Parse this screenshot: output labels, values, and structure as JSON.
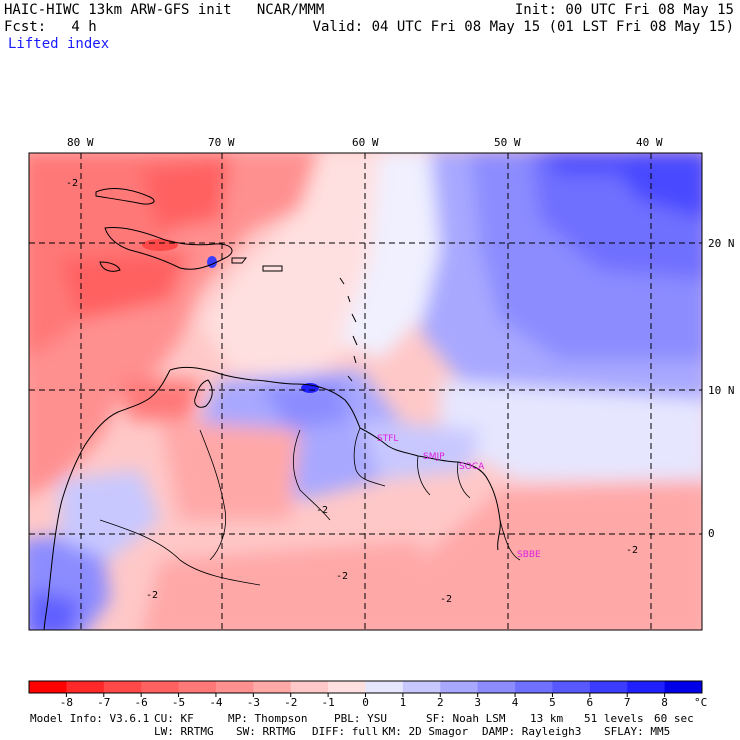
{
  "header": {
    "title_left": "HAIC-HIWC 13km ARW-GFS init   NCAR/MMM",
    "forecast": "Fcst:   4 h",
    "field": "Lifted index",
    "init": "Init: 00 UTC Fri 08 May 15",
    "valid": "Valid: 04 UTC Fri 08 May 15 (01 LST Fri 08 May 15)"
  },
  "map": {
    "lon_labels": [
      "80 W",
      "70 W",
      "60 W",
      "50 W",
      "40 W"
    ],
    "lat_labels": [
      "20 N",
      "10 N",
      "0"
    ],
    "contour_labels": [
      "-2",
      "-2",
      "-2",
      "-2",
      "-2",
      "-2"
    ],
    "stations": [
      "STFL",
      "SMJP",
      "SOCA",
      "SBBE"
    ],
    "station_color": "#e020e0"
  },
  "colorbar": {
    "ticks": [
      "-8",
      "-7",
      "-6",
      "-5",
      "-4",
      "-3",
      "-2",
      "-1",
      "0",
      "1",
      "2",
      "3",
      "4",
      "5",
      "6",
      "7",
      "8"
    ],
    "unit": "°C",
    "colors": [
      "#ff0000",
      "#ff2828",
      "#ff4848",
      "#ff6060",
      "#ff7878",
      "#ff9090",
      "#ffa8a8",
      "#ffc8c8",
      "#ffe0e0",
      "#e6e6ff",
      "#c8c8ff",
      "#a8a8ff",
      "#8c8cff",
      "#7070ff",
      "#5858ff",
      "#3c3cff",
      "#2020ff",
      "#0000e8"
    ]
  },
  "footer": {
    "line1": [
      "Model Info: V3.6.1",
      "CU: KF",
      "MP: Thompson",
      "PBL: YSU",
      "SF: Noah LSM",
      "13 km",
      "51 levels",
      "60 sec"
    ],
    "line2": [
      "LW: RRTMG",
      "SW: RRTMG",
      "DIFF: full",
      "KM: 2D Smagor",
      "DAMP: Rayleigh3",
      "SFLAY: MM5"
    ]
  }
}
